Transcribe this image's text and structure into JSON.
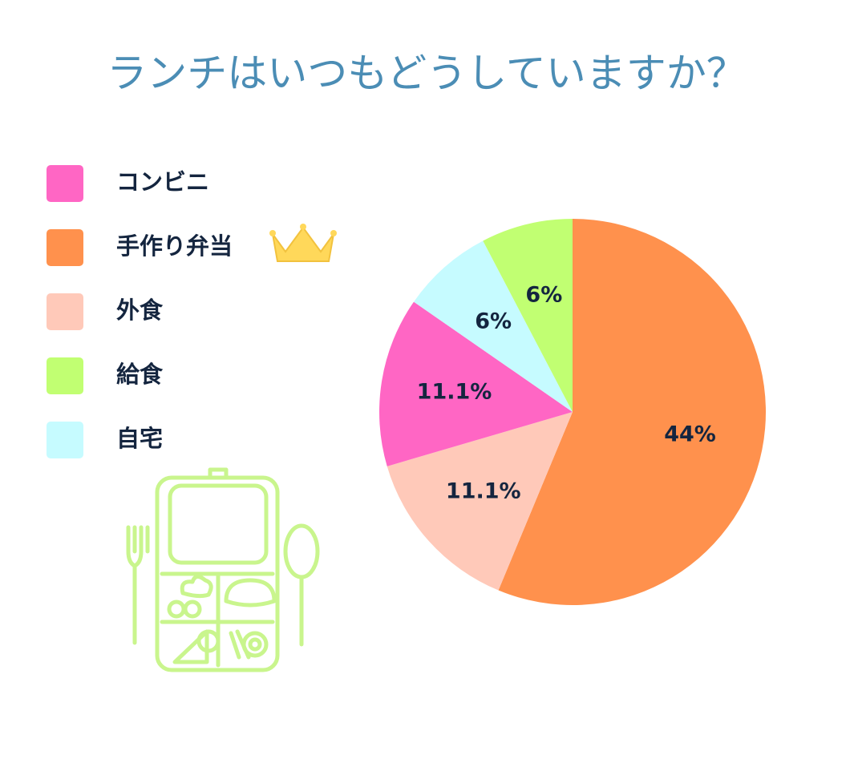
{
  "chart_data": {
    "type": "pie",
    "title": "ランチはいつもどうしていますか？",
    "categories": [
      "コンビニ",
      "手作り弁当",
      "外食",
      "給食",
      "自宅"
    ],
    "values": [
      11.1,
      44,
      11.1,
      6,
      6
    ],
    "value_labels": [
      "11.1%",
      "44%",
      "11.1%",
      "6%",
      "6%"
    ],
    "colors": [
      "#ff66c4",
      "#ff914d",
      "#ffc9b9",
      "#c1ff72",
      "#c6fbff"
    ]
  }
}
